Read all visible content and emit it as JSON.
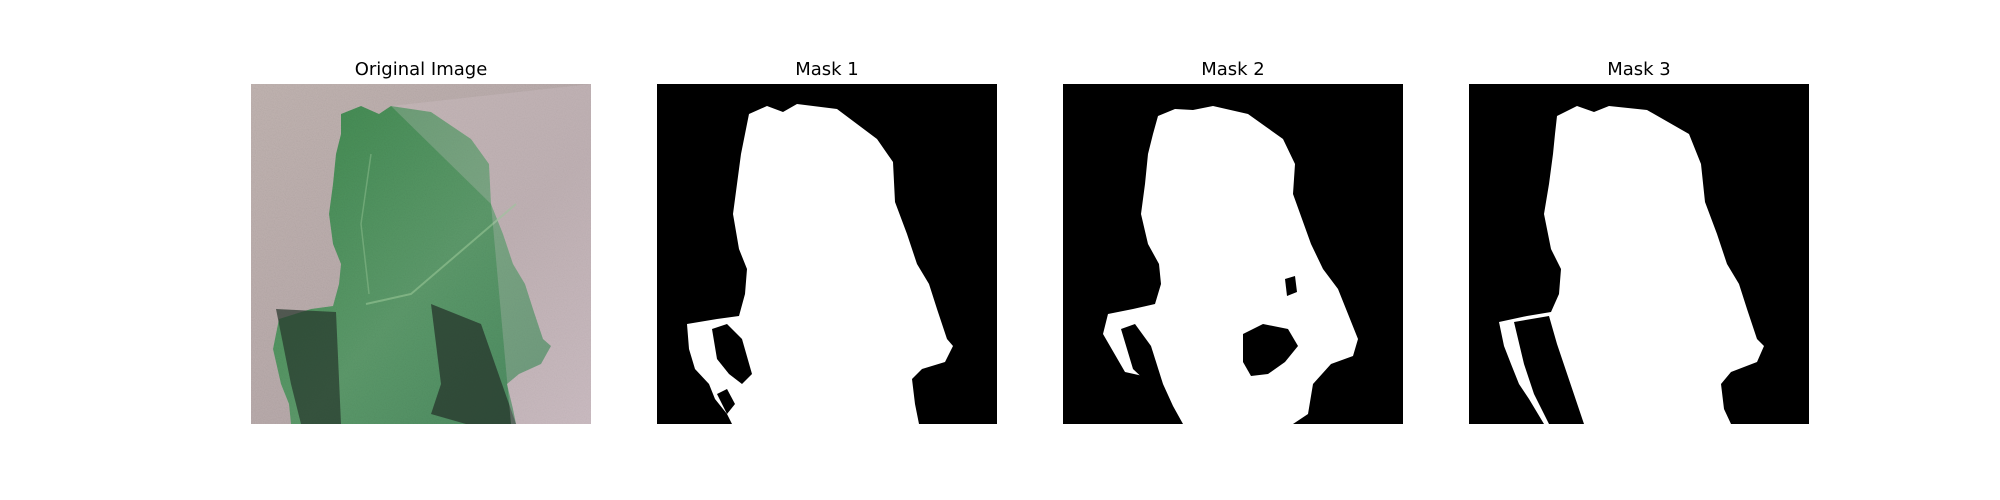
{
  "figure": {
    "panels": [
      {
        "title": "Original Image"
      },
      {
        "title": "Mask 1"
      },
      {
        "title": "Mask 2"
      },
      {
        "title": "Mask 3"
      }
    ]
  },
  "colors": {
    "background_paper": "#b7a9aa",
    "leaf_green": "#4f8c5c",
    "leaf_dark": "#2f5a3a",
    "shadow": "#2d3b33",
    "mask_background": "#000000",
    "mask_foreground": "#ffffff"
  }
}
